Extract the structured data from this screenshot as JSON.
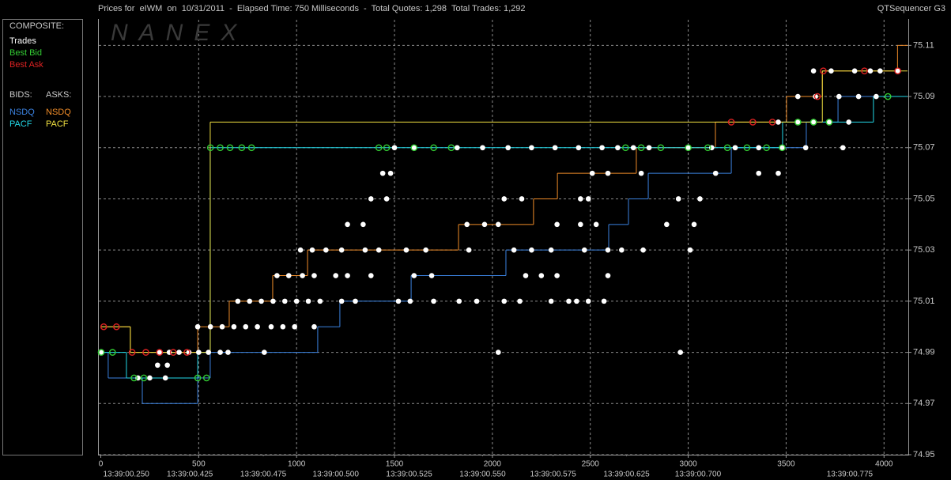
{
  "chart_data": {
    "type": "line",
    "title": "Prices for  eIWM  on  10/31/2011  -  Elapsed Time: 750 Milliseconds  -  Total Quotes: 1,298  Total Trades: 1,292",
    "app_name": "QTSequencer G3",
    "watermark": "NANEX",
    "legend_headings": {
      "composite": "COMPOSITE:",
      "bids": "BIDS:",
      "asks": "ASKS:"
    },
    "xlim": [
      -10,
      4120
    ],
    "xticks": [
      0,
      500,
      1000,
      1500,
      2000,
      2500,
      3000,
      3500,
      4000
    ],
    "time_ticks": [
      {
        "value": 130,
        "label": "13:39:00.250"
      },
      {
        "value": 455,
        "label": "13:39:00.425"
      },
      {
        "value": 830,
        "label": "13:39:00.475"
      },
      {
        "value": 1200,
        "label": "13:39:00.500"
      },
      {
        "value": 1575,
        "label": "13:39:00.525"
      },
      {
        "value": 1950,
        "label": "13:39:00.550"
      },
      {
        "value": 2310,
        "label": "13:39:00.575"
      },
      {
        "value": 2685,
        "label": "13:39:00.625"
      },
      {
        "value": 3050,
        "label": "13:39:00.700"
      },
      {
        "value": 3825,
        "label": "13:39:00.775"
      }
    ],
    "ylim": [
      74.95,
      75.12
    ],
    "yticks": [
      74.95,
      74.97,
      74.99,
      75.01,
      75.03,
      75.05,
      75.07,
      75.09,
      75.11
    ],
    "grid": true,
    "series": [
      {
        "name": "Trades",
        "type": "scatter",
        "color": "#ffffff",
        "x": [
          5,
          300,
          350,
          400,
          450,
          500,
          550,
          610,
          650,
          835,
          2030,
          2960,
          290,
          340,
          190,
          250,
          330,
          495,
          560,
          620,
          680,
          740,
          800,
          870,
          930,
          990,
          1090,
          700,
          760,
          820,
          880,
          940,
          1000,
          1060,
          1120,
          1230,
          1300,
          1520,
          1580,
          1700,
          1830,
          1920,
          2060,
          2140,
          2300,
          2390,
          2430,
          2490,
          2570,
          900,
          960,
          1030,
          1090,
          1200,
          1260,
          1380,
          1600,
          1690,
          2170,
          2250,
          2330,
          2590,
          1020,
          1080,
          1150,
          1230,
          1350,
          1420,
          1560,
          1660,
          1880,
          2110,
          2200,
          2300,
          2470,
          2590,
          2660,
          2770,
          3010,
          1260,
          1340,
          1870,
          1960,
          2030,
          2330,
          2450,
          2530,
          2890,
          3030,
          1380,
          1460,
          2060,
          2150,
          2450,
          2490,
          2950,
          3060,
          1440,
          1480,
          2510,
          2590,
          2760,
          3140,
          3360,
          3460,
          1500,
          1600,
          1820,
          1950,
          2080,
          2200,
          2320,
          2440,
          2560,
          2640,
          2720,
          2800,
          3000,
          3120,
          3240,
          3360,
          3480,
          3600,
          3790,
          3460,
          3560,
          3640,
          3720,
          3820,
          3560,
          3650,
          3770,
          3870,
          3960,
          3640,
          3730,
          3850,
          3930,
          3980,
          4070
        ],
        "values": [
          74.99,
          74.99,
          74.99,
          74.99,
          74.99,
          74.99,
          74.99,
          74.99,
          74.99,
          74.99,
          74.99,
          74.99,
          74.985,
          74.985,
          74.98,
          74.98,
          74.98,
          75.0,
          75.0,
          75.0,
          75.0,
          75.0,
          75.0,
          75.0,
          75.0,
          75.0,
          75.0,
          75.01,
          75.01,
          75.01,
          75.01,
          75.01,
          75.01,
          75.01,
          75.01,
          75.01,
          75.01,
          75.01,
          75.01,
          75.01,
          75.01,
          75.01,
          75.01,
          75.01,
          75.01,
          75.01,
          75.01,
          75.01,
          75.01,
          75.02,
          75.02,
          75.02,
          75.02,
          75.02,
          75.02,
          75.02,
          75.02,
          75.02,
          75.02,
          75.02,
          75.02,
          75.02,
          75.03,
          75.03,
          75.03,
          75.03,
          75.03,
          75.03,
          75.03,
          75.03,
          75.03,
          75.03,
          75.03,
          75.03,
          75.03,
          75.03,
          75.03,
          75.03,
          75.03,
          75.04,
          75.04,
          75.04,
          75.04,
          75.04,
          75.04,
          75.04,
          75.04,
          75.04,
          75.04,
          75.05,
          75.05,
          75.05,
          75.05,
          75.05,
          75.05,
          75.05,
          75.05,
          75.06,
          75.06,
          75.06,
          75.06,
          75.06,
          75.06,
          75.06,
          75.06,
          75.07,
          75.07,
          75.07,
          75.07,
          75.07,
          75.07,
          75.07,
          75.07,
          75.07,
          75.07,
          75.07,
          75.07,
          75.07,
          75.07,
          75.07,
          75.07,
          75.07,
          75.07,
          75.07,
          75.08,
          75.08,
          75.08,
          75.08,
          75.08,
          75.09,
          75.09,
          75.09,
          75.09,
          75.09,
          75.1,
          75.1,
          75.1,
          75.1,
          75.1,
          75.1
        ]
      },
      {
        "name": "Best Bid",
        "type": "scatter",
        "color": "#33cc33",
        "x": [
          2,
          60,
          170,
          220,
          495,
          540,
          560,
          610,
          660,
          720,
          770,
          1420,
          1460,
          1600,
          1700,
          1790,
          2680,
          2760,
          2860,
          3000,
          3100,
          3200,
          3300,
          3400,
          3480,
          3560,
          3640,
          3720,
          4020
        ],
        "values": [
          74.99,
          74.99,
          74.98,
          74.98,
          74.98,
          74.98,
          75.07,
          75.07,
          75.07,
          75.07,
          75.07,
          75.07,
          75.07,
          75.07,
          75.07,
          75.07,
          75.07,
          75.07,
          75.07,
          75.07,
          75.07,
          75.07,
          75.07,
          75.07,
          75.07,
          75.08,
          75.08,
          75.08,
          75.09
        ]
      },
      {
        "name": "Best Ask",
        "type": "scatter",
        "color": "#dd2222",
        "x": [
          15,
          80,
          160,
          230,
          300,
          370,
          440,
          3220,
          3330,
          3430,
          3660,
          3690,
          3900,
          4070
        ],
        "values": [
          75.0,
          75.0,
          74.99,
          74.99,
          74.99,
          74.99,
          74.99,
          75.08,
          75.08,
          75.08,
          75.09,
          75.1,
          75.1,
          75.1
        ]
      },
      {
        "name": "NSDQ",
        "type": "step",
        "color": "#3b82e0",
        "x": [
          2,
          38,
          212,
          495,
          559,
          1108,
          1221,
          1585,
          2069,
          2594,
          2695,
          2796,
          3220,
          3603,
          3765,
          4120
        ],
        "values": [
          74.99,
          74.98,
          74.97,
          74.98,
          74.99,
          75.0,
          75.01,
          75.02,
          75.03,
          75.04,
          75.05,
          75.06,
          75.07,
          75.08,
          75.09,
          75.09
        ]
      },
      {
        "name": "NSDQ",
        "type": "step",
        "color": "#f08c28",
        "x": [
          2,
          151,
          495,
          656,
          878,
          1056,
          1827,
          2210,
          2332,
          2735,
          3139,
          3502,
          3685,
          4069,
          4120
        ],
        "values": [
          75.0,
          74.99,
          75.0,
          75.01,
          75.02,
          75.03,
          75.04,
          75.05,
          75.06,
          75.07,
          75.08,
          75.09,
          75.1,
          75.11,
          75.11
        ]
      },
      {
        "name": "PACF",
        "type": "step",
        "color": "#22d8e8",
        "x": [
          2,
          131,
          495,
          559,
          3482,
          3946,
          4120
        ],
        "values": [
          74.99,
          74.98,
          74.99,
          75.07,
          75.08,
          75.09,
          75.09
        ]
      },
      {
        "name": "PACF",
        "type": "step",
        "color": "#f0e040",
        "x": [
          2,
          151,
          559,
          3685,
          4120
        ],
        "values": [
          75.0,
          74.99,
          75.08,
          75.1,
          75.1
        ]
      }
    ]
  }
}
